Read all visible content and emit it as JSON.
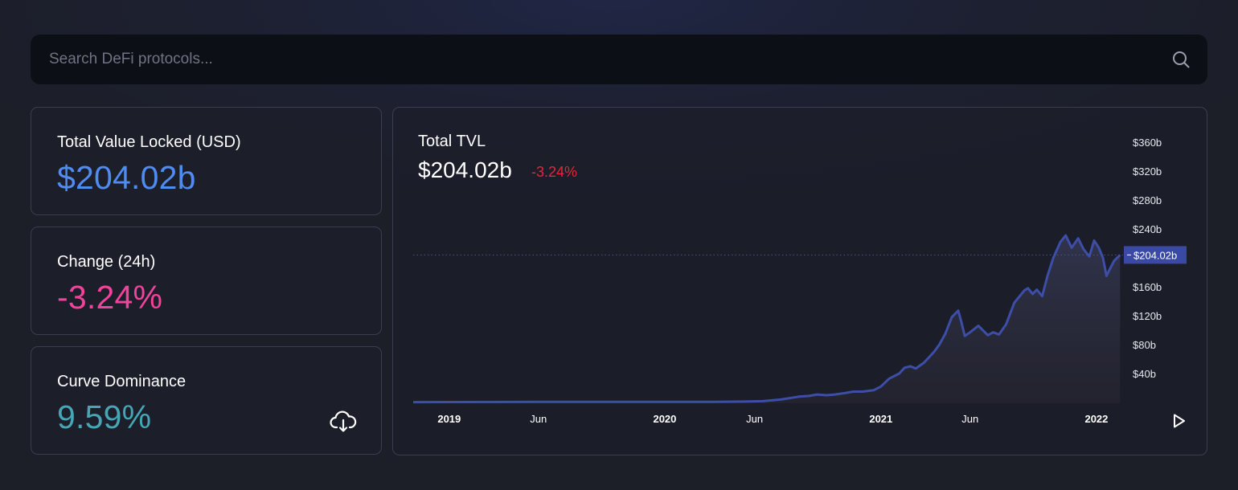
{
  "search": {
    "placeholder": "Search DeFi protocols..."
  },
  "stats": {
    "tvl": {
      "label": "Total Value Locked (USD)",
      "value": "$204.02b",
      "color": "#4f8bf0"
    },
    "change": {
      "label": "Change (24h)",
      "value": "-3.24%",
      "color": "#f1439b"
    },
    "dominance": {
      "label": "Curve Dominance",
      "value": "9.59%",
      "color": "#46a6b6"
    }
  },
  "chart": {
    "title": "Total TVL",
    "value": "$204.02b",
    "change": "-3.24%"
  },
  "chart_data": {
    "type": "area",
    "title": "Total TVL",
    "current_label": "$204.02b",
    "current_value": 204.02,
    "yticks": [
      "$360b",
      "$320b",
      "$280b",
      "$240b",
      "$160b",
      "$120b",
      "$80b",
      "$40b"
    ],
    "ytick_values": [
      360,
      320,
      280,
      240,
      160,
      120,
      80,
      40
    ],
    "ylim": [
      0,
      375
    ],
    "xlim": [
      "2018-11-01",
      "2022-02-15"
    ],
    "xticks": [
      {
        "label": "2019",
        "date": "2019-01-01",
        "bold": true
      },
      {
        "label": "Jun",
        "date": "2019-06-01",
        "bold": false
      },
      {
        "label": "2020",
        "date": "2020-01-01",
        "bold": true
      },
      {
        "label": "Jun",
        "date": "2020-06-01",
        "bold": false
      },
      {
        "label": "2021",
        "date": "2021-01-01",
        "bold": true
      },
      {
        "label": "Jun",
        "date": "2021-06-01",
        "bold": false
      },
      {
        "label": "2022",
        "date": "2022-01-01",
        "bold": true
      }
    ],
    "series": [
      {
        "values": [
          [
            "2018-11-01",
            0.5
          ],
          [
            "2019-01-01",
            0.6
          ],
          [
            "2019-06-01",
            0.8
          ],
          [
            "2019-11-01",
            0.9
          ],
          [
            "2020-01-01",
            0.8
          ],
          [
            "2020-03-15",
            0.8
          ],
          [
            "2020-05-15",
            1.2
          ],
          [
            "2020-06-15",
            1.8
          ],
          [
            "2020-07-15",
            4
          ],
          [
            "2020-08-15",
            8
          ],
          [
            "2020-09-01",
            9
          ],
          [
            "2020-09-15",
            11
          ],
          [
            "2020-10-01",
            10
          ],
          [
            "2020-10-15",
            11
          ],
          [
            "2020-11-01",
            13
          ],
          [
            "2020-11-15",
            15
          ],
          [
            "2020-12-01",
            15
          ],
          [
            "2020-12-20",
            17
          ],
          [
            "2021-01-01",
            22
          ],
          [
            "2021-01-15",
            33
          ],
          [
            "2021-02-01",
            40
          ],
          [
            "2021-02-10",
            48
          ],
          [
            "2021-02-20",
            50
          ],
          [
            "2021-03-01",
            47
          ],
          [
            "2021-03-15",
            55
          ],
          [
            "2021-04-01",
            70
          ],
          [
            "2021-04-10",
            80
          ],
          [
            "2021-04-20",
            95
          ],
          [
            "2021-05-01",
            118
          ],
          [
            "2021-05-12",
            127
          ],
          [
            "2021-05-17",
            112
          ],
          [
            "2021-05-23",
            92
          ],
          [
            "2021-06-01",
            97
          ],
          [
            "2021-06-15",
            106
          ],
          [
            "2021-07-01",
            93
          ],
          [
            "2021-07-10",
            97
          ],
          [
            "2021-07-20",
            94
          ],
          [
            "2021-08-01",
            108
          ],
          [
            "2021-08-15",
            138
          ],
          [
            "2021-09-01",
            155
          ],
          [
            "2021-09-07",
            158
          ],
          [
            "2021-09-15",
            150
          ],
          [
            "2021-09-22",
            156
          ],
          [
            "2021-10-01",
            147
          ],
          [
            "2021-10-10",
            175
          ],
          [
            "2021-10-20",
            200
          ],
          [
            "2021-11-01",
            222
          ],
          [
            "2021-11-10",
            231
          ],
          [
            "2021-11-20",
            214
          ],
          [
            "2021-12-01",
            227
          ],
          [
            "2021-12-10",
            212
          ],
          [
            "2021-12-20",
            202
          ],
          [
            "2021-12-28",
            224
          ],
          [
            "2022-01-05",
            214
          ],
          [
            "2022-01-12",
            200
          ],
          [
            "2022-01-18",
            175
          ],
          [
            "2022-01-24",
            185
          ],
          [
            "2022-01-31",
            196
          ],
          [
            "2022-02-10",
            204
          ]
        ]
      }
    ],
    "grid": false,
    "line_color": "#3d4ea8",
    "current_label_color": "#3a4aa4"
  }
}
